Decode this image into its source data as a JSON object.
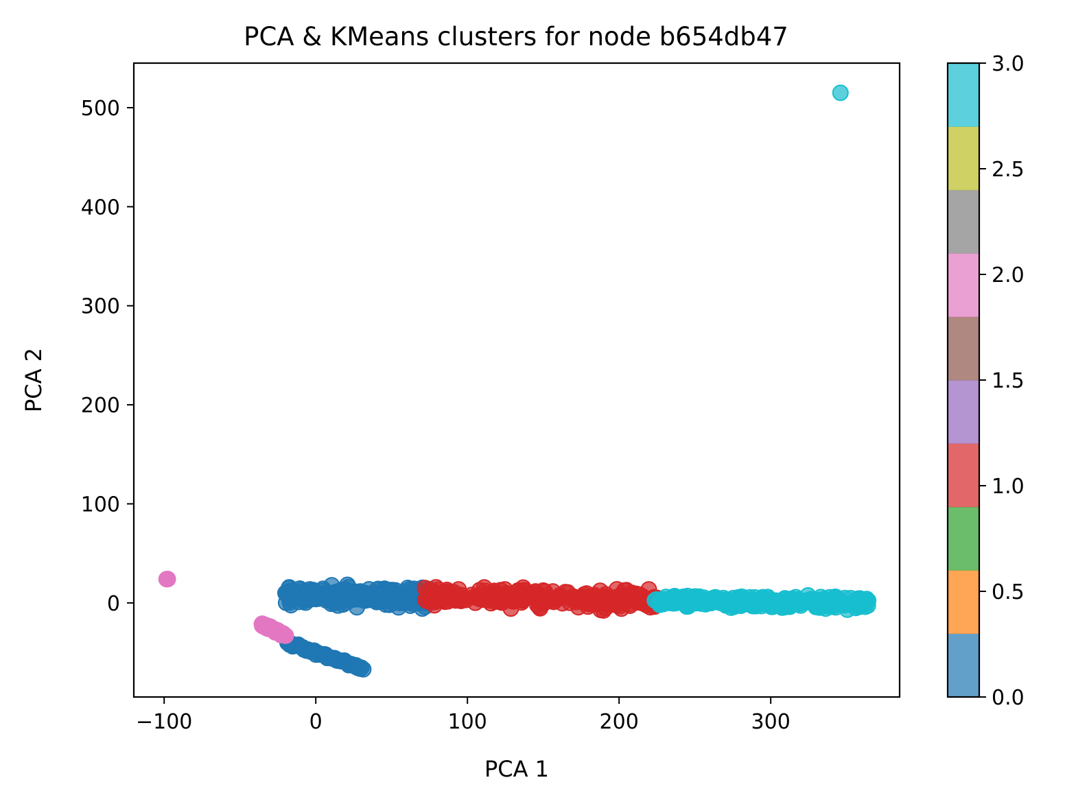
{
  "chart_data": {
    "type": "scatter",
    "title": "PCA & KMeans clusters for node b654db47",
    "xlabel": "PCA 1",
    "ylabel": "PCA 2",
    "xlim": [
      -120,
      385
    ],
    "ylim": [
      -95,
      545
    ],
    "xticks": [
      -100,
      0,
      100,
      200,
      300
    ],
    "xtick_labels": [
      "−100",
      "0",
      "100",
      "200",
      "300"
    ],
    "yticks": [
      0,
      100,
      200,
      300,
      400,
      500
    ],
    "ytick_labels": [
      "0",
      "100",
      "200",
      "300",
      "400",
      "500"
    ],
    "grid": false,
    "colormap": "tab10",
    "clusters": [
      {
        "label": 0,
        "color": "#1f77b4",
        "regions": [
          {
            "kind": "band",
            "x": [
              -20,
              78
            ],
            "y_center": [
              9,
              4
            ],
            "spread": 14
          },
          {
            "kind": "line",
            "from": [
              -19,
              -40
            ],
            "to": [
              31,
              -67
            ],
            "spread": 3
          }
        ]
      },
      {
        "label": 1,
        "color": "#d62728",
        "regions": [
          {
            "kind": "band",
            "x": [
              72,
              228
            ],
            "y_center": [
              8,
              2
            ],
            "spread": 15
          }
        ]
      },
      {
        "label": 2,
        "color": "#e377c2",
        "regions": [
          {
            "kind": "cluster",
            "center": [
              -98,
              24
            ],
            "spread": 1
          },
          {
            "kind": "line",
            "from": [
              -36,
              -21
            ],
            "to": [
              -20,
              -33
            ],
            "spread": 3
          }
        ]
      },
      {
        "label": 3,
        "color": "#17becf",
        "regions": [
          {
            "kind": "band",
            "x": [
              222,
              365
            ],
            "y_center": [
              2,
              0
            ],
            "spread": 10
          },
          {
            "kind": "cluster",
            "center": [
              346,
              515
            ],
            "spread": 0
          }
        ]
      }
    ],
    "colorbar": {
      "range": [
        0,
        3
      ],
      "ticks": [
        0.0,
        0.5,
        1.0,
        1.5,
        2.0,
        2.5,
        3.0
      ],
      "tick_labels": [
        "0.0",
        "0.5",
        "1.0",
        "1.5",
        "2.0",
        "2.5",
        "3.0"
      ],
      "segment_colors": [
        "#1f77b4",
        "#ff7f0e",
        "#2ca02c",
        "#d62728",
        "#9467bd",
        "#8c564b",
        "#e377c2",
        "#7f7f7f",
        "#bcbd22",
        "#17becf"
      ]
    }
  }
}
